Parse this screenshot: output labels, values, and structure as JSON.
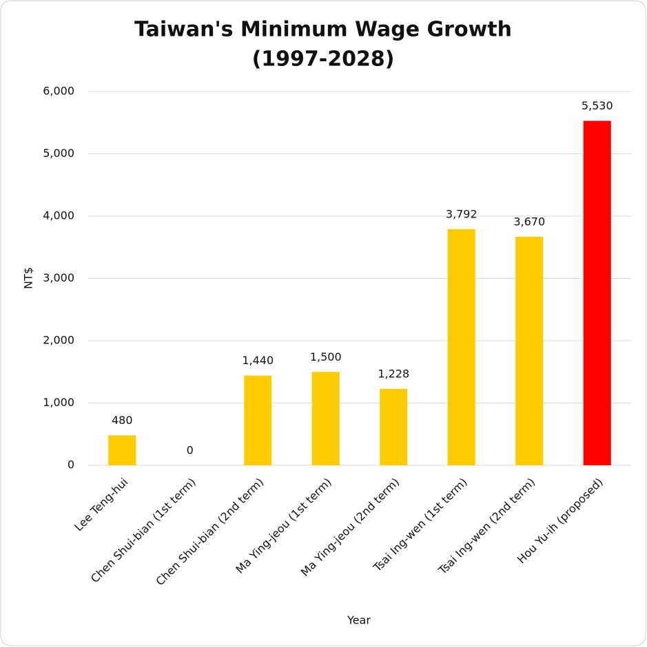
{
  "chart_data": {
    "type": "bar",
    "title": [
      "Taiwan's Minimum Wage Growth",
      "(1997-2028)"
    ],
    "x_label": "Year",
    "y_label": "NT$",
    "categories": [
      "Lee Teng-hui",
      "Chen Shui-bian (1st term)",
      "Chen Shui-bian (2nd term)",
      "Ma Ying-jeou (1st term)",
      "Ma Ying-jeou (2nd term)",
      "Tsai Ing-wen (1st term)",
      "Tsai Ing-wen (2nd term)",
      "Hou Yu-ih (proposed)"
    ],
    "values": [
      480,
      0,
      1440,
      1500,
      1228,
      3792,
      3670,
      5530
    ],
    "value_labels": [
      "480",
      "0",
      "1,440",
      "1,500",
      "1,228",
      "3,792",
      "3,670",
      "5,530"
    ],
    "colors": [
      "#ffcc00",
      "#ffcc00",
      "#ffcc00",
      "#ffcc00",
      "#ffcc00",
      "#ffcc00",
      "#ffcc00",
      "#ff0000"
    ],
    "ylim": [
      0,
      6000
    ],
    "yticks": [
      0,
      {
        "value": 1000,
        "label": "1,000"
      },
      {
        "value": 2000,
        "label": "2,000"
      },
      {
        "value": 3000,
        "label": "3,000"
      },
      {
        "value": 4000,
        "label": "4,000"
      },
      {
        "value": 5000,
        "label": "5,000"
      },
      {
        "value": 6000,
        "label": "6,000"
      }
    ],
    "grid": true
  }
}
